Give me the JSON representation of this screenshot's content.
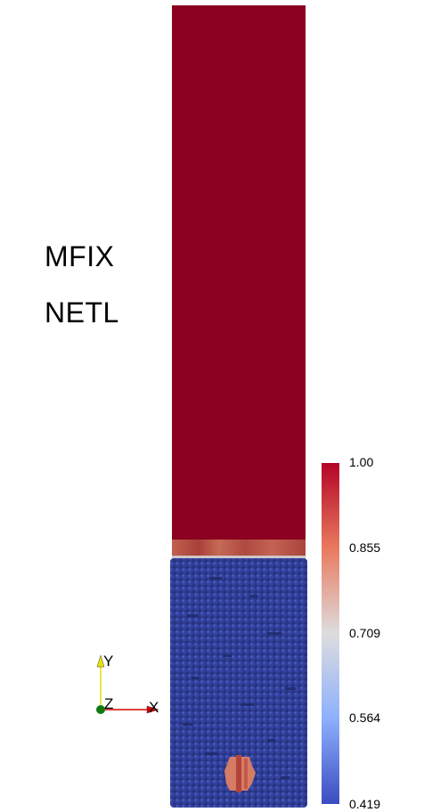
{
  "annotations": {
    "line1": "MFIX",
    "line2": "NETL"
  },
  "colorbar": {
    "ticks": [
      "1.00",
      "0.855",
      "0.709",
      "0.564",
      "0.419"
    ],
    "colors": {
      "high": "#b40426",
      "mid": "#dddddd",
      "low": "#3b4cc0"
    }
  },
  "axes": {
    "y": "Y",
    "z": "Z",
    "x": "X"
  },
  "scene": {
    "void_color": "#8b0020",
    "particle_color": "#2f3c95",
    "interface_color": "#b75a50"
  }
}
